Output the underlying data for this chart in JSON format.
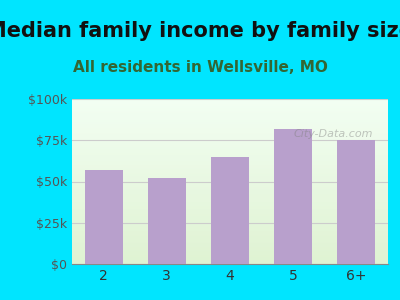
{
  "title": "Median family income by family size",
  "subtitle": "All residents in Wellsville, MO",
  "categories": [
    "2",
    "3",
    "4",
    "5",
    "6+"
  ],
  "values": [
    57000,
    52000,
    65000,
    82000,
    75000
  ],
  "bar_color": "#b8a0cc",
  "background_outer": "#00e5ff",
  "ylim": [
    0,
    100000
  ],
  "yticks": [
    0,
    25000,
    50000,
    75000,
    100000
  ],
  "ytick_labels": [
    "$0",
    "$25k",
    "$50k",
    "$75k",
    "$100k"
  ],
  "title_fontsize": 15,
  "subtitle_fontsize": 11,
  "watermark": "City-Data.com"
}
